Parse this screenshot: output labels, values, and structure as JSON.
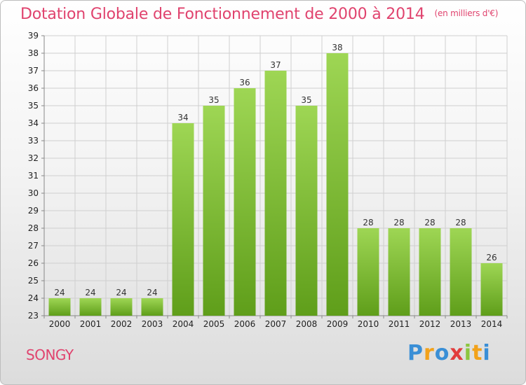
{
  "chart_data": {
    "type": "bar",
    "title": "Dotation Globale de Fonctionnement de 2000 à 2014",
    "unit_note": "(en milliers d'€)",
    "categories": [
      "2000",
      "2001",
      "2002",
      "2003",
      "2004",
      "2005",
      "2006",
      "2007",
      "2008",
      "2009",
      "2010",
      "2011",
      "2012",
      "2013",
      "2014"
    ],
    "values": [
      24,
      24,
      24,
      24,
      34,
      35,
      36,
      37,
      35,
      38,
      28,
      28,
      28,
      28,
      26
    ],
    "ylim": [
      23,
      39
    ],
    "yticks": [
      23,
      24,
      25,
      26,
      27,
      28,
      29,
      30,
      31,
      32,
      33,
      34,
      35,
      36,
      37,
      38,
      39
    ],
    "grid": true,
    "bar_color": "#7cc22e"
  },
  "footer": {
    "place": "SONGY",
    "logo_letters": [
      "P",
      "r",
      "o",
      "x",
      "i",
      "t",
      "i"
    ],
    "logo_colors": [
      "#3a8fd6",
      "#f2a21b",
      "#3a8fd6",
      "#e23c3c",
      "#8cc63f",
      "#f2a21b",
      "#3a8fd6"
    ]
  },
  "colors": {
    "title": "#e0436e",
    "grid": "#cfcfcf"
  }
}
